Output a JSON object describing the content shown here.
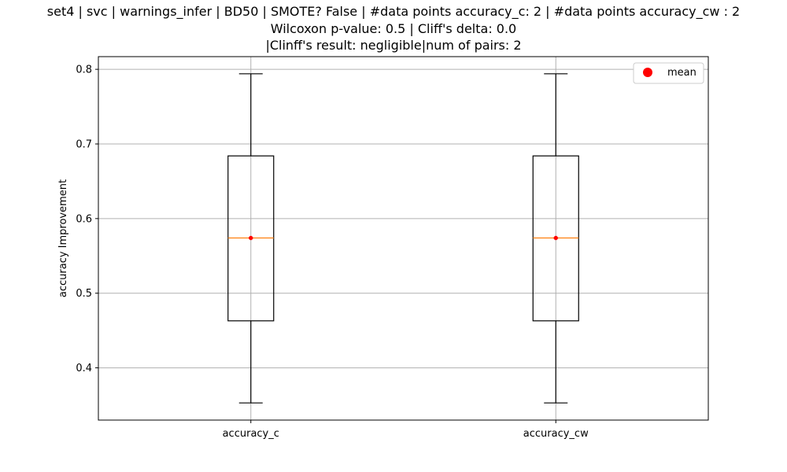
{
  "chart_data": {
    "type": "box",
    "title_lines": [
      "set4 | svc | warnings_infer | BD50 | SMOTE? False | #data points accuracy_c: 2 | #data points accuracy_cw : 2",
      "Wilcoxon p-value: 0.5 | Cliff's delta: 0.0",
      "|Clinff's result: negligible|num of pairs: 2"
    ],
    "xlabel": "",
    "ylabel": "accuracy Improvement",
    "ylim": [
      0.33,
      0.817
    ],
    "yticks": [
      "0.4",
      "0.5",
      "0.6",
      "0.7",
      "0.8"
    ],
    "grid": true,
    "legend": {
      "placement": "upper-right",
      "entries": [
        {
          "label": "mean",
          "color": "#ff0000",
          "marker": "circle"
        }
      ]
    },
    "categories": [
      "accuracy_c",
      "accuracy_cw"
    ],
    "boxes": [
      {
        "name": "accuracy_c",
        "whisker_low": 0.353,
        "q1": 0.463,
        "median": 0.574,
        "q3": 0.684,
        "whisker_high": 0.794,
        "mean": 0.574
      },
      {
        "name": "accuracy_cw",
        "whisker_low": 0.353,
        "q1": 0.463,
        "median": 0.574,
        "q3": 0.684,
        "whisker_high": 0.794,
        "mean": 0.574
      }
    ],
    "colors": {
      "box": "#000000",
      "median": "#ff7f0e",
      "mean": "#ff0000",
      "grid": "#b0b0b0"
    }
  }
}
